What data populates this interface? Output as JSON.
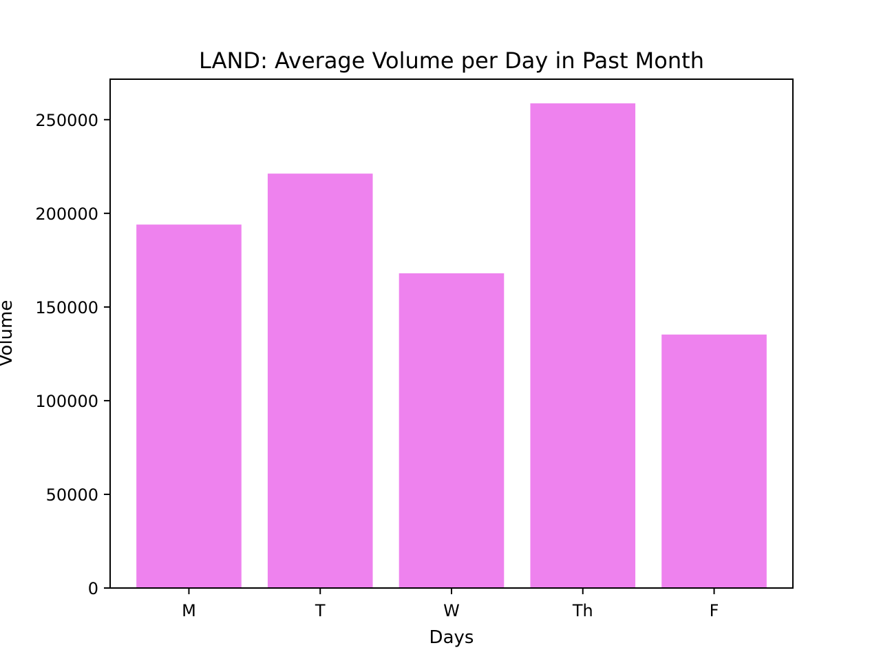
{
  "chart_data": {
    "type": "bar",
    "title": "LAND: Average Volume per Day in Past Month",
    "xlabel": "Days",
    "ylabel": "Volume",
    "categories": [
      "M",
      "T",
      "W",
      "Th",
      "F"
    ],
    "values": [
      194000,
      221200,
      168000,
      258700,
      135300
    ],
    "ylim": [
      0,
      271600
    ],
    "yticks": [
      0,
      50000,
      100000,
      150000,
      200000,
      250000
    ],
    "ytick_labels": [
      "0",
      "50000",
      "100000",
      "150000",
      "200000",
      "250000"
    ],
    "bar_color": "#ee82ee",
    "grid": false,
    "legend": false
  }
}
